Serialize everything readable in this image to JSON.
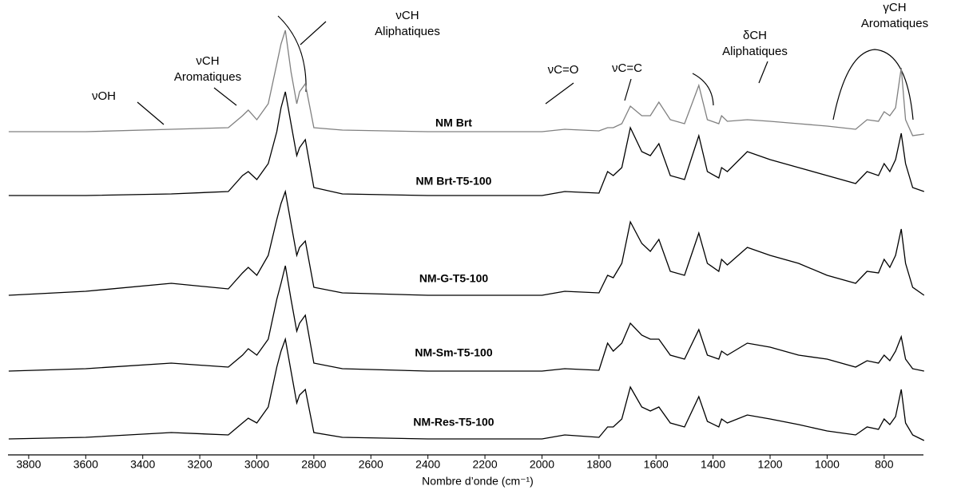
{
  "chart_data": {
    "type": "line",
    "xlabel": "Nombre d’onde (cm⁻¹)",
    "x": [
      3870,
      3600,
      3300,
      3100,
      3050,
      3030,
      3000,
      2960,
      2930,
      2915,
      2900,
      2880,
      2860,
      2850,
      2830,
      2800,
      2700,
      2400,
      2000,
      1920,
      1800,
      1770,
      1750,
      1720,
      1690,
      1650,
      1620,
      1590,
      1550,
      1500,
      1450,
      1420,
      1380,
      1370,
      1350,
      1280,
      1200,
      1100,
      1000,
      900,
      860,
      820,
      800,
      780,
      760,
      740,
      725,
      700,
      660
    ],
    "xlim": [
      3867,
      665
    ],
    "xticks": [
      3800,
      3600,
      3400,
      3200,
      3000,
      2800,
      2600,
      2400,
      2200,
      2000,
      1800,
      1600,
      1400,
      1200,
      1000,
      800
    ],
    "ylim": [
      0,
      570
    ],
    "series": [
      {
        "name": "NM Brt",
        "color": "#808080",
        "values": [
          405,
          405,
          408,
          410,
          425,
          432,
          420,
          440,
          490,
          515,
          532,
          480,
          440,
          455,
          465,
          410,
          407,
          405,
          405,
          408,
          406,
          410,
          410,
          415,
          437,
          425,
          425,
          442,
          420,
          415,
          463,
          420,
          415,
          425,
          418,
          420,
          418,
          415,
          412,
          408,
          420,
          418,
          430,
          425,
          435,
          485,
          420,
          400,
          402
        ]
      },
      {
        "name": "NM Brt-T5-100",
        "color": "#000000",
        "values": [
          325,
          325,
          327,
          330,
          350,
          355,
          345,
          365,
          405,
          435,
          455,
          415,
          375,
          385,
          395,
          335,
          327,
          325,
          325,
          330,
          328,
          355,
          350,
          360,
          410,
          380,
          375,
          390,
          350,
          345,
          400,
          355,
          347,
          360,
          355,
          380,
          370,
          360,
          350,
          340,
          355,
          350,
          365,
          355,
          370,
          403,
          365,
          335,
          330
        ]
      },
      {
        "name": "NM-G-T5-100",
        "color": "#000000",
        "values": [
          200,
          205,
          215,
          208,
          228,
          235,
          225,
          250,
          295,
          315,
          330,
          290,
          250,
          260,
          268,
          210,
          203,
          200,
          200,
          205,
          203,
          225,
          222,
          240,
          292,
          265,
          255,
          270,
          230,
          225,
          278,
          240,
          230,
          245,
          238,
          260,
          250,
          240,
          225,
          215,
          230,
          228,
          245,
          235,
          250,
          283,
          240,
          210,
          200
        ]
      },
      {
        "name": "NM-Sm-T5-100",
        "color": "#000000",
        "values": [
          105,
          108,
          115,
          110,
          125,
          133,
          125,
          145,
          195,
          215,
          237,
          195,
          155,
          165,
          175,
          115,
          108,
          105,
          105,
          108,
          106,
          140,
          130,
          140,
          165,
          150,
          145,
          145,
          125,
          120,
          157,
          125,
          120,
          130,
          125,
          140,
          135,
          125,
          120,
          110,
          118,
          115,
          125,
          118,
          130,
          148,
          120,
          108,
          105
        ]
      },
      {
        "name": "NM-Res-T5-100",
        "color": "#000000",
        "values": [
          20,
          22,
          28,
          25,
          40,
          46,
          40,
          60,
          110,
          130,
          145,
          105,
          65,
          75,
          82,
          28,
          22,
          20,
          20,
          25,
          22,
          35,
          35,
          45,
          85,
          60,
          55,
          60,
          40,
          35,
          73,
          42,
          35,
          45,
          40,
          50,
          45,
          38,
          30,
          25,
          35,
          32,
          45,
          38,
          48,
          82,
          40,
          25,
          18
        ]
      }
    ],
    "annotations": [
      [
        "νOH"
      ],
      [
        "νCH",
        "Aromatiques"
      ],
      [
        "νCH",
        "Aliphatiques"
      ],
      [
        "νC=O"
      ],
      [
        "νC=C"
      ],
      [
        "δCH",
        "Aliphatiques"
      ],
      [
        "γCH",
        "Aromatiques"
      ]
    ]
  }
}
